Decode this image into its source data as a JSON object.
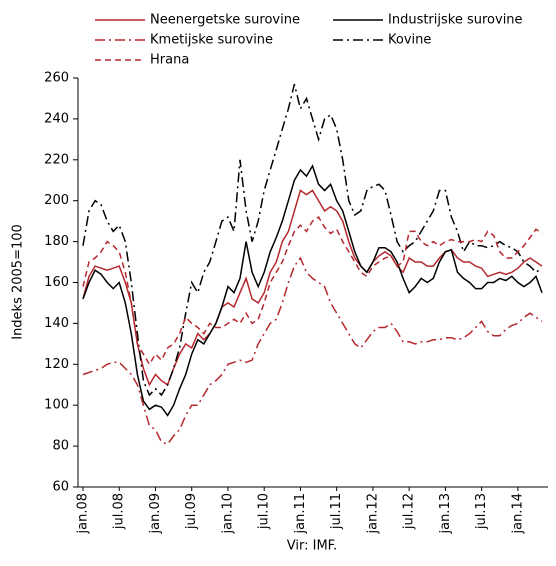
{
  "chart_data": {
    "type": "line",
    "y_label": "Indeks 2005=100",
    "source": "Vir: IMF.",
    "categories": [
      "jan.08",
      null,
      null,
      null,
      null,
      null,
      "jul.08",
      null,
      null,
      null,
      null,
      null,
      "jan.09",
      null,
      null,
      null,
      null,
      null,
      "jul.09",
      null,
      null,
      null,
      null,
      null,
      "jan.10",
      null,
      null,
      null,
      null,
      null,
      "jul.10",
      null,
      null,
      null,
      null,
      null,
      "jan.11",
      null,
      null,
      null,
      null,
      null,
      "jul.11",
      null,
      null,
      null,
      null,
      null,
      "jan.12",
      null,
      null,
      null,
      null,
      null,
      "jul.12",
      null,
      null,
      null,
      null,
      null,
      "jan.13",
      null,
      null,
      null,
      null,
      null,
      "jul.13",
      null,
      null,
      null,
      null,
      null,
      "jan.14",
      null,
      null,
      null,
      null
    ],
    "ylim": [
      60,
      260
    ],
    "yticks": [
      60,
      80,
      100,
      120,
      140,
      160,
      180,
      200,
      220,
      240,
      260
    ],
    "grid": false,
    "series": [
      {
        "name": "Neenergetske surovine",
        "color": "#b5282e",
        "line_style": "solid",
        "values": [
          152,
          163,
          168,
          167,
          166,
          167,
          168,
          160,
          150,
          130,
          118,
          110,
          115,
          112,
          110,
          118,
          125,
          130,
          128,
          135,
          132,
          135,
          140,
          148,
          150,
          148,
          155,
          162,
          152,
          150,
          155,
          165,
          170,
          180,
          185,
          195,
          205,
          203,
          205,
          200,
          195,
          197,
          195,
          190,
          180,
          172,
          168,
          165,
          170,
          173,
          175,
          173,
          168,
          165,
          172,
          170,
          170,
          168,
          168,
          172,
          175,
          176,
          172,
          170,
          170,
          168,
          167,
          163,
          164,
          165,
          164,
          165,
          167,
          170,
          172,
          170,
          168
        ]
      },
      {
        "name": "Industrijske surovine",
        "color": "#000000",
        "line_style": "solid",
        "values": [
          152,
          160,
          166,
          164,
          160,
          157,
          160,
          150,
          135,
          115,
          102,
          98,
          100,
          99,
          95,
          100,
          108,
          115,
          125,
          132,
          130,
          135,
          140,
          148,
          158,
          155,
          162,
          180,
          165,
          158,
          165,
          175,
          182,
          190,
          200,
          210,
          215,
          212,
          217,
          208,
          205,
          208,
          200,
          195,
          185,
          175,
          168,
          165,
          170,
          177,
          177,
          175,
          170,
          162,
          155,
          158,
          162,
          160,
          162,
          170,
          175,
          176,
          165,
          162,
          160,
          157,
          157,
          160,
          160,
          162,
          161,
          163,
          160,
          158,
          160,
          163,
          155
        ]
      },
      {
        "name": "Kmetijske surovine",
        "color": "#b5282e",
        "line_style": "dashdot",
        "values": [
          115,
          116,
          117,
          118,
          120,
          121,
          121,
          118,
          115,
          110,
          100,
          90,
          88,
          82,
          81,
          85,
          88,
          95,
          100,
          100,
          105,
          110,
          112,
          115,
          120,
          121,
          122,
          121,
          122,
          130,
          135,
          140,
          142,
          150,
          160,
          168,
          172,
          165,
          162,
          160,
          158,
          150,
          145,
          140,
          135,
          130,
          128,
          132,
          136,
          138,
          138,
          140,
          136,
          131,
          131,
          130,
          131,
          131,
          132,
          132,
          133,
          133,
          132,
          133,
          135,
          138,
          141,
          136,
          134,
          134,
          137,
          139,
          140,
          143,
          145,
          143,
          141
        ]
      },
      {
        "name": "Kovine",
        "color": "#000000",
        "line_style": "dashdot",
        "values": [
          178,
          195,
          200,
          198,
          190,
          185,
          188,
          180,
          160,
          135,
          112,
          105,
          108,
          105,
          110,
          118,
          128,
          145,
          160,
          155,
          165,
          170,
          180,
          190,
          192,
          185,
          220,
          195,
          180,
          190,
          205,
          215,
          225,
          235,
          245,
          257,
          245,
          250,
          240,
          230,
          240,
          242,
          235,
          220,
          200,
          193,
          195,
          205,
          207,
          208,
          205,
          193,
          180,
          175,
          178,
          180,
          185,
          190,
          195,
          205,
          205,
          192,
          185,
          175,
          180,
          178,
          178,
          177,
          178,
          180,
          178,
          177,
          175,
          170,
          168,
          165,
          167
        ]
      },
      {
        "name": "Hrana",
        "color": "#b5282e",
        "line_style": "dashed",
        "values": [
          158,
          170,
          172,
          175,
          180,
          178,
          175,
          165,
          150,
          130,
          125,
          120,
          125,
          122,
          128,
          130,
          135,
          143,
          140,
          138,
          135,
          140,
          138,
          138,
          140,
          142,
          140,
          145,
          140,
          142,
          150,
          160,
          165,
          170,
          178,
          185,
          188,
          185,
          190,
          192,
          187,
          184,
          186,
          180,
          175,
          170,
          165,
          163,
          168,
          170,
          172,
          173,
          168,
          170,
          185,
          185,
          180,
          178,
          180,
          178,
          180,
          181,
          180,
          180,
          180,
          181,
          180,
          185,
          183,
          175,
          172,
          172,
          175,
          178,
          182,
          186,
          184
        ]
      }
    ]
  }
}
